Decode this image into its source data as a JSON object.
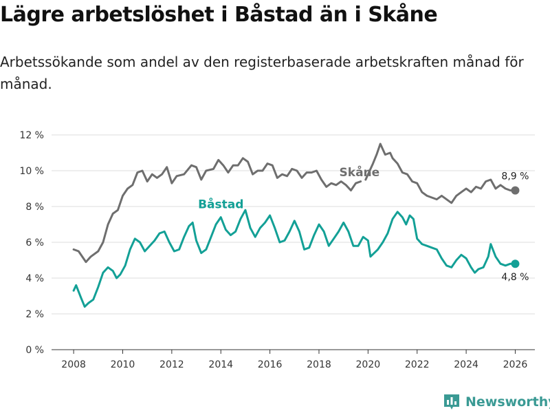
{
  "title": "Lägre arbetslöshet i Båstad än i Skåne",
  "subtitle": "Arbetssökande som andel av den registerbaserade arbetskraften månad för månad.",
  "brand": "Newsworthy",
  "colors": {
    "skane": "#6e6e6e",
    "bastad": "#13a096",
    "grid": "#dcdcdc",
    "brand": "#3a9a94"
  },
  "chart_data": {
    "type": "line",
    "title": "Lägre arbetslöshet i Båstad än i Skåne",
    "xlabel": "",
    "ylabel": "",
    "xlim": [
      2007.1,
      2026.8
    ],
    "ylim": [
      0,
      12
    ],
    "x_ticks": [
      {
        "value": 2008,
        "label": "2008"
      },
      {
        "value": 2010,
        "label": "2010"
      },
      {
        "value": 2012,
        "label": "2012"
      },
      {
        "value": 2014,
        "label": "2014"
      },
      {
        "value": 2016,
        "label": "2016"
      },
      {
        "value": 2018,
        "label": "2018"
      },
      {
        "value": 2020,
        "label": "2020"
      },
      {
        "value": 2022,
        "label": "2022"
      },
      {
        "value": 2024,
        "label": "2024"
      },
      {
        "value": 2026,
        "label": "2026"
      }
    ],
    "y_ticks": [
      {
        "value": 0,
        "label": "0 %"
      },
      {
        "value": 2,
        "label": "2 %"
      },
      {
        "value": 4,
        "label": "4 %"
      },
      {
        "value": 6,
        "label": "6 %"
      },
      {
        "value": 8,
        "label": "8 %"
      },
      {
        "value": 10,
        "label": "10 %"
      },
      {
        "value": 12,
        "label": "12 %"
      }
    ],
    "grid": true,
    "series": [
      {
        "name": "Skåne",
        "color": "#6e6e6e",
        "end_label": "8,9 %",
        "points": [
          [
            2008.0,
            5.6
          ],
          [
            2008.2,
            5.5
          ],
          [
            2008.4,
            5.1
          ],
          [
            2008.5,
            4.9
          ],
          [
            2008.7,
            5.2
          ],
          [
            2009.0,
            5.5
          ],
          [
            2009.2,
            6.0
          ],
          [
            2009.4,
            7.0
          ],
          [
            2009.6,
            7.6
          ],
          [
            2009.8,
            7.8
          ],
          [
            2010.0,
            8.6
          ],
          [
            2010.2,
            9.0
          ],
          [
            2010.4,
            9.2
          ],
          [
            2010.6,
            9.9
          ],
          [
            2010.8,
            10.0
          ],
          [
            2011.0,
            9.4
          ],
          [
            2011.2,
            9.8
          ],
          [
            2011.4,
            9.6
          ],
          [
            2011.6,
            9.8
          ],
          [
            2011.8,
            10.2
          ],
          [
            2012.0,
            9.3
          ],
          [
            2012.2,
            9.7
          ],
          [
            2012.5,
            9.8
          ],
          [
            2012.8,
            10.3
          ],
          [
            2013.0,
            10.2
          ],
          [
            2013.2,
            9.5
          ],
          [
            2013.4,
            10.0
          ],
          [
            2013.7,
            10.1
          ],
          [
            2013.9,
            10.6
          ],
          [
            2014.1,
            10.3
          ],
          [
            2014.3,
            9.9
          ],
          [
            2014.5,
            10.3
          ],
          [
            2014.7,
            10.3
          ],
          [
            2014.9,
            10.7
          ],
          [
            2015.1,
            10.5
          ],
          [
            2015.3,
            9.8
          ],
          [
            2015.5,
            10.0
          ],
          [
            2015.7,
            10.0
          ],
          [
            2015.9,
            10.4
          ],
          [
            2016.1,
            10.3
          ],
          [
            2016.3,
            9.6
          ],
          [
            2016.5,
            9.8
          ],
          [
            2016.7,
            9.7
          ],
          [
            2016.9,
            10.1
          ],
          [
            2017.1,
            10.0
          ],
          [
            2017.3,
            9.6
          ],
          [
            2017.5,
            9.9
          ],
          [
            2017.7,
            9.9
          ],
          [
            2017.9,
            10.0
          ],
          [
            2018.1,
            9.5
          ],
          [
            2018.3,
            9.1
          ],
          [
            2018.5,
            9.3
          ],
          [
            2018.7,
            9.2
          ],
          [
            2018.9,
            9.4
          ],
          [
            2019.1,
            9.2
          ],
          [
            2019.3,
            8.9
          ],
          [
            2019.5,
            9.3
          ],
          [
            2019.7,
            9.4
          ]
        ],
        "points_2": [
          [
            2019.9,
            9.5
          ],
          [
            2020.2,
            10.4
          ],
          [
            2020.35,
            10.9
          ],
          [
            2020.5,
            11.5
          ],
          [
            2020.7,
            10.9
          ],
          [
            2020.9,
            11.0
          ],
          [
            2021.0,
            10.7
          ],
          [
            2021.2,
            10.4
          ],
          [
            2021.4,
            9.9
          ],
          [
            2021.6,
            9.8
          ],
          [
            2021.8,
            9.4
          ],
          [
            2022.0,
            9.3
          ],
          [
            2022.2,
            8.8
          ],
          [
            2022.4,
            8.6
          ],
          [
            2022.6,
            8.5
          ],
          [
            2022.8,
            8.4
          ],
          [
            2023.0,
            8.6
          ],
          [
            2023.2,
            8.4
          ],
          [
            2023.4,
            8.2
          ],
          [
            2023.6,
            8.6
          ],
          [
            2023.8,
            8.8
          ],
          [
            2024.0,
            9.0
          ],
          [
            2024.2,
            8.8
          ],
          [
            2024.4,
            9.1
          ],
          [
            2024.6,
            9.0
          ],
          [
            2024.8,
            9.4
          ],
          [
            2025.0,
            9.5
          ],
          [
            2025.2,
            9.0
          ],
          [
            2025.4,
            9.2
          ],
          [
            2025.6,
            9.0
          ],
          [
            2025.8,
            8.9
          ],
          [
            2026.0,
            8.9
          ]
        ]
      },
      {
        "name": "Båstad",
        "color": "#13a096",
        "end_label": "4,8 %",
        "points": [
          [
            2008.0,
            3.3
          ],
          [
            2008.1,
            3.6
          ],
          [
            2008.3,
            2.9
          ],
          [
            2008.45,
            2.4
          ],
          [
            2008.6,
            2.6
          ],
          [
            2008.8,
            2.8
          ],
          [
            2009.0,
            3.5
          ],
          [
            2009.2,
            4.3
          ],
          [
            2009.4,
            4.6
          ],
          [
            2009.6,
            4.4
          ],
          [
            2009.75,
            4.0
          ],
          [
            2009.9,
            4.2
          ],
          [
            2010.1,
            4.7
          ],
          [
            2010.3,
            5.6
          ],
          [
            2010.5,
            6.2
          ],
          [
            2010.7,
            6.0
          ],
          [
            2010.9,
            5.5
          ],
          [
            2011.1,
            5.8
          ],
          [
            2011.3,
            6.1
          ],
          [
            2011.5,
            6.5
          ],
          [
            2011.7,
            6.6
          ],
          [
            2011.9,
            6.0
          ],
          [
            2012.1,
            5.5
          ],
          [
            2012.3,
            5.6
          ],
          [
            2012.5,
            6.3
          ],
          [
            2012.7,
            6.9
          ],
          [
            2012.85,
            7.1
          ],
          [
            2013.0,
            6.1
          ],
          [
            2013.2,
            5.4
          ],
          [
            2013.4,
            5.6
          ],
          [
            2013.6,
            6.3
          ],
          [
            2013.8,
            7.0
          ],
          [
            2014.0,
            7.4
          ],
          [
            2014.2,
            6.7
          ],
          [
            2014.4,
            6.4
          ],
          [
            2014.6,
            6.6
          ],
          [
            2014.8,
            7.3
          ],
          [
            2015.0,
            7.8
          ],
          [
            2015.2,
            6.8
          ],
          [
            2015.4,
            6.3
          ],
          [
            2015.6,
            6.8
          ],
          [
            2015.8,
            7.1
          ],
          [
            2016.0,
            7.5
          ],
          [
            2016.2,
            6.8
          ],
          [
            2016.4,
            6.0
          ],
          [
            2016.6,
            6.1
          ],
          [
            2016.8,
            6.6
          ],
          [
            2017.0,
            7.2
          ],
          [
            2017.2,
            6.6
          ],
          [
            2017.4,
            5.6
          ],
          [
            2017.6,
            5.7
          ],
          [
            2017.8,
            6.4
          ],
          [
            2018.0,
            7.0
          ],
          [
            2018.2,
            6.6
          ],
          [
            2018.4,
            5.8
          ],
          [
            2018.6,
            6.2
          ],
          [
            2018.8,
            6.6
          ],
          [
            2019.0,
            7.1
          ],
          [
            2019.2,
            6.6
          ],
          [
            2019.4,
            5.8
          ],
          [
            2019.6,
            5.8
          ],
          [
            2019.8,
            6.3
          ],
          [
            2020.0,
            6.1
          ],
          [
            2020.1,
            5.2
          ],
          [
            2020.25,
            5.4
          ],
          [
            2020.4,
            5.6
          ],
          [
            2020.6,
            6.0
          ],
          [
            2020.8,
            6.5
          ],
          [
            2021.0,
            7.3
          ],
          [
            2021.2,
            7.7
          ],
          [
            2021.4,
            7.4
          ],
          [
            2021.55,
            7.0
          ],
          [
            2021.7,
            7.5
          ],
          [
            2021.85,
            7.3
          ],
          [
            2022.0,
            6.2
          ],
          [
            2022.2,
            5.9
          ],
          [
            2022.4,
            5.8
          ],
          [
            2022.6,
            5.7
          ],
          [
            2022.8,
            5.6
          ],
          [
            2023.0,
            5.1
          ],
          [
            2023.2,
            4.7
          ],
          [
            2023.4,
            4.6
          ],
          [
            2023.6,
            5.0
          ],
          [
            2023.8,
            5.3
          ],
          [
            2024.0,
            5.1
          ],
          [
            2024.2,
            4.6
          ],
          [
            2024.35,
            4.3
          ],
          [
            2024.5,
            4.5
          ],
          [
            2024.7,
            4.6
          ],
          [
            2024.9,
            5.2
          ],
          [
            2025.0,
            5.9
          ],
          [
            2025.2,
            5.2
          ],
          [
            2025.4,
            4.8
          ],
          [
            2025.6,
            4.7
          ],
          [
            2025.8,
            4.8
          ],
          [
            2026.0,
            4.8
          ]
        ]
      }
    ],
    "annotations": [
      {
        "text": "Skåne",
        "x": 2019.65,
        "y": 9.7
      },
      {
        "text": "Båstad",
        "x": 2014.0,
        "y": 7.9
      }
    ]
  }
}
